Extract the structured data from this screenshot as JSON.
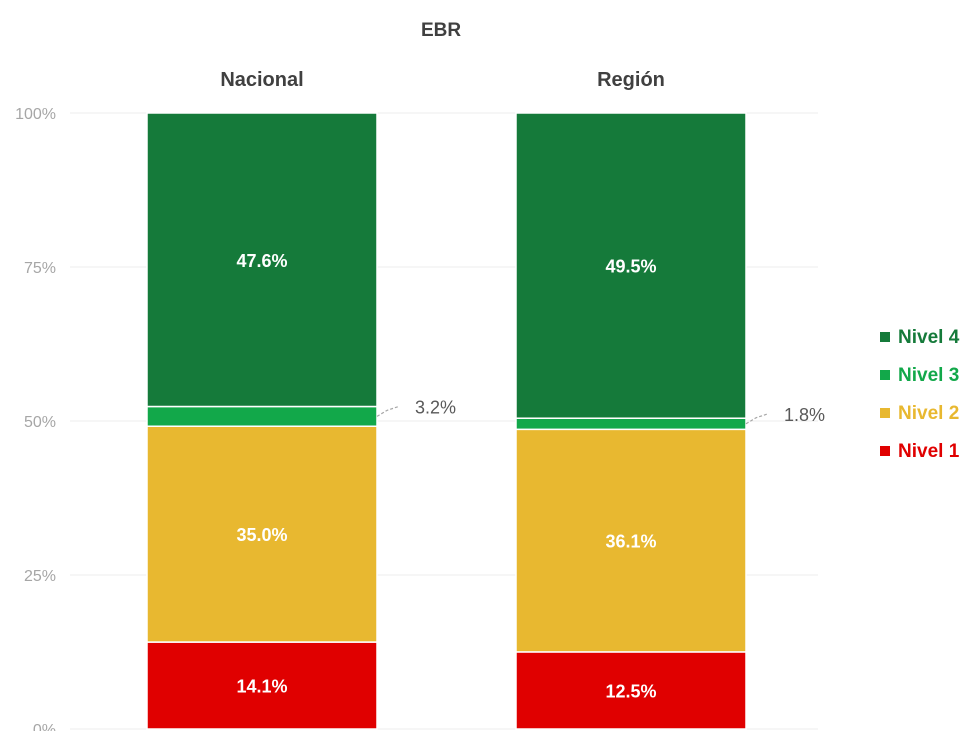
{
  "chart_data": {
    "type": "bar",
    "stacked": true,
    "percent": true,
    "title": "EBR",
    "categories": [
      "Nacional",
      "Región"
    ],
    "series": [
      {
        "name": "Nivel 1",
        "values": [
          14.1,
          12.5
        ],
        "labels": [
          "14.1%",
          "12.5%"
        ],
        "color": "#e00000"
      },
      {
        "name": "Nivel 2",
        "values": [
          35.0,
          36.1
        ],
        "labels": [
          "35.0%",
          "36.1%"
        ],
        "color": "#e8b830"
      },
      {
        "name": "Nivel 3",
        "values": [
          3.2,
          1.8
        ],
        "labels": [
          "3.2%",
          "1.8%"
        ],
        "color": "#12a84a"
      },
      {
        "name": "Nivel 4",
        "values": [
          47.6,
          49.5
        ],
        "labels": [
          "47.6%",
          "49.5%"
        ],
        "color": "#157a3a"
      }
    ],
    "ylim": [
      0,
      100
    ],
    "yticks": [
      "0%",
      "25%",
      "50%",
      "75%",
      "100%"
    ],
    "grid": true,
    "legend": "right",
    "legend_order": [
      "Nivel 4",
      "Nivel 3",
      "Nivel 2",
      "Nivel 1"
    ]
  }
}
